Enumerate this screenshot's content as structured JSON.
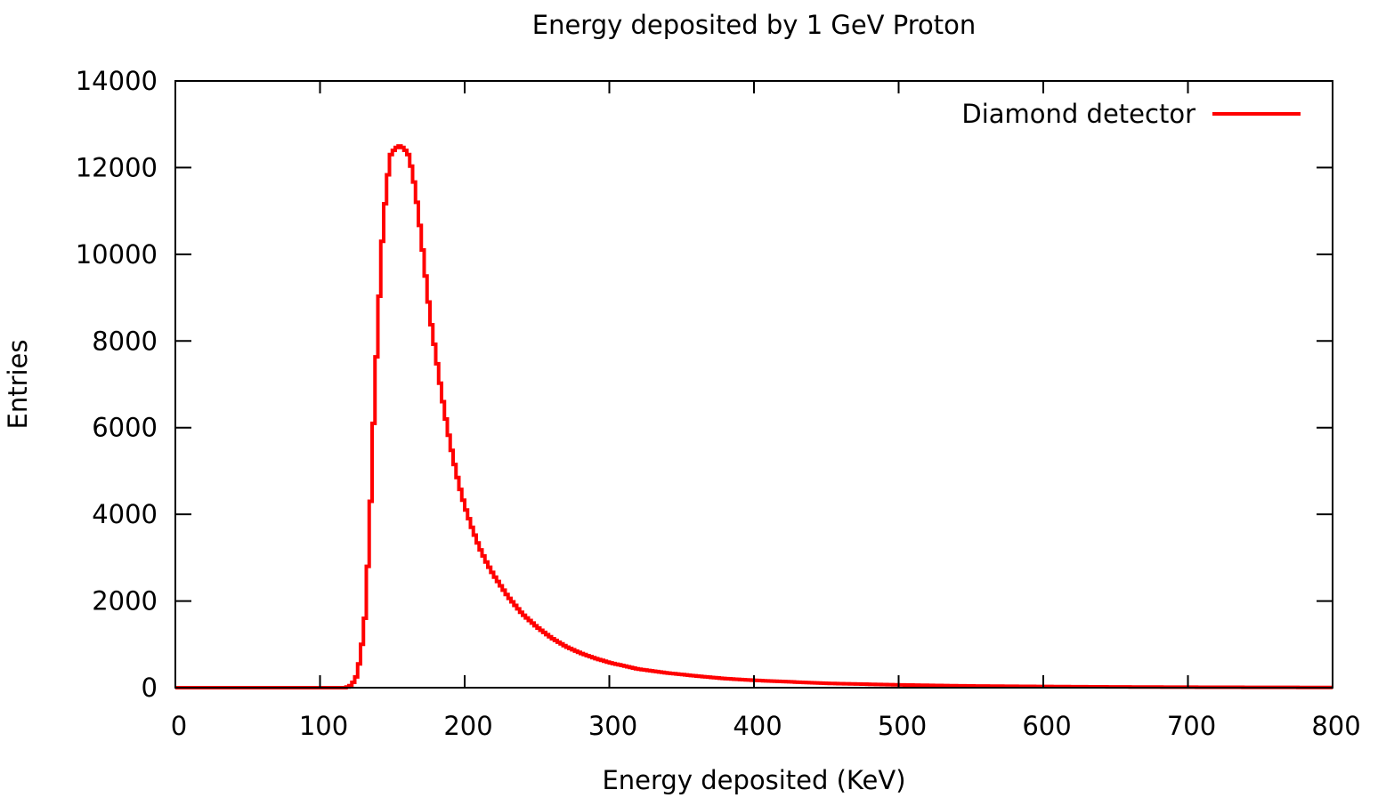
{
  "chart_data": {
    "type": "line",
    "title": "Energy deposited by 1 GeV Proton",
    "xlabel": "Energy deposited (KeV)",
    "ylabel": "Entries",
    "xlim": [
      0,
      800
    ],
    "ylim": [
      0,
      14000
    ],
    "xticks": [
      "0",
      "100",
      "200",
      "300",
      "400",
      "500",
      "600",
      "700",
      "800"
    ],
    "yticks": [
      "0",
      "2000",
      "4000",
      "6000",
      "8000",
      "10000",
      "12000",
      "14000"
    ],
    "grid": false,
    "legend_position": "top-right",
    "series": [
      {
        "name": "Diamond detector",
        "color": "#ff0000",
        "style": "histogram-step",
        "x": [
          0,
          100,
          118,
          122,
          125,
          128,
          131,
          134,
          137,
          140,
          143,
          146,
          149,
          152,
          155,
          158,
          161,
          164,
          167,
          170,
          173,
          176,
          180,
          184,
          188,
          192,
          196,
          200,
          205,
          210,
          215,
          220,
          225,
          230,
          240,
          250,
          260,
          270,
          280,
          290,
          300,
          320,
          340,
          360,
          380,
          400,
          450,
          500,
          550,
          600,
          650,
          700,
          750,
          800
        ],
        "y": [
          0,
          0,
          0,
          60,
          250,
          700,
          1600,
          3400,
          6100,
          8400,
          10300,
          11600,
          12300,
          12450,
          12500,
          12450,
          12300,
          11900,
          11200,
          10400,
          9500,
          8600,
          7700,
          6800,
          6000,
          5300,
          4700,
          4200,
          3700,
          3250,
          2900,
          2600,
          2350,
          2100,
          1700,
          1400,
          1150,
          950,
          800,
          680,
          580,
          430,
          340,
          270,
          210,
          170,
          100,
          65,
          40,
          28,
          18,
          12,
          8,
          5
        ]
      }
    ]
  }
}
